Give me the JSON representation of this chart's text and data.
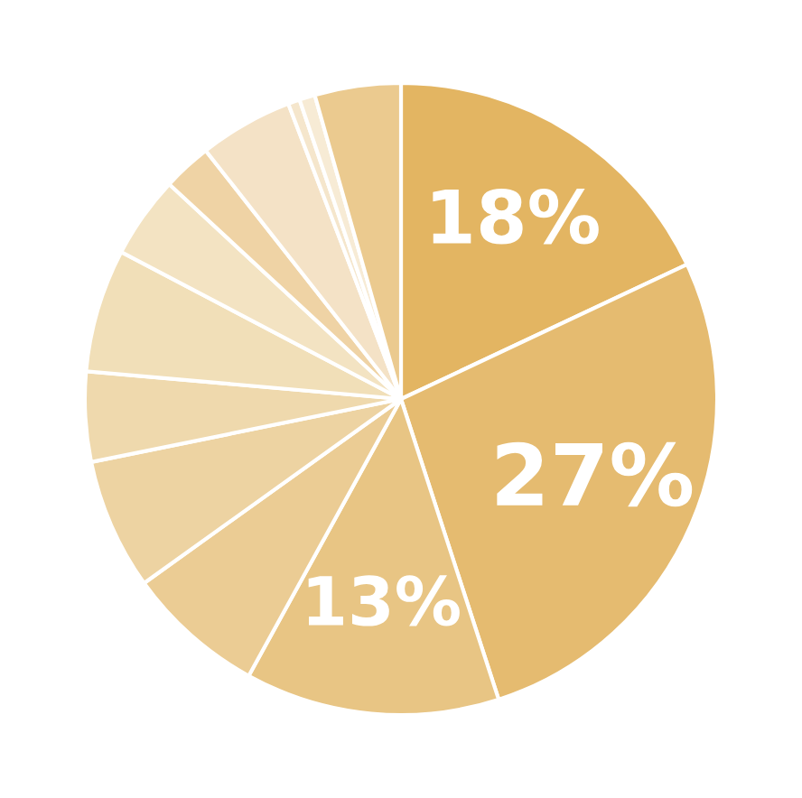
{
  "chart_data": {
    "type": "pie",
    "categories": [
      null,
      null,
      null,
      null,
      null,
      null,
      null,
      null,
      null,
      null,
      null,
      null,
      null
    ],
    "values": [
      18,
      27,
      13,
      7.1,
      6.7,
      4.6,
      6.3,
      4.2,
      2.5,
      4.8,
      0.6,
      0.8,
      4.4
    ],
    "value_labels": [
      "18%",
      "27%",
      "13%",
      null,
      null,
      null,
      null,
      null,
      null,
      null,
      null,
      null,
      null
    ],
    "colors": [
      "#e3b562",
      "#e5bb70",
      "#e8c584",
      "#ebcc94",
      "#edd3a2",
      "#efd9ad",
      "#f1dfb8",
      "#f3e3c2",
      "#efd3a5",
      "#f4e2c6",
      "#f5e6cc",
      "#f7ebd5",
      "#ebca8f"
    ]
  }
}
